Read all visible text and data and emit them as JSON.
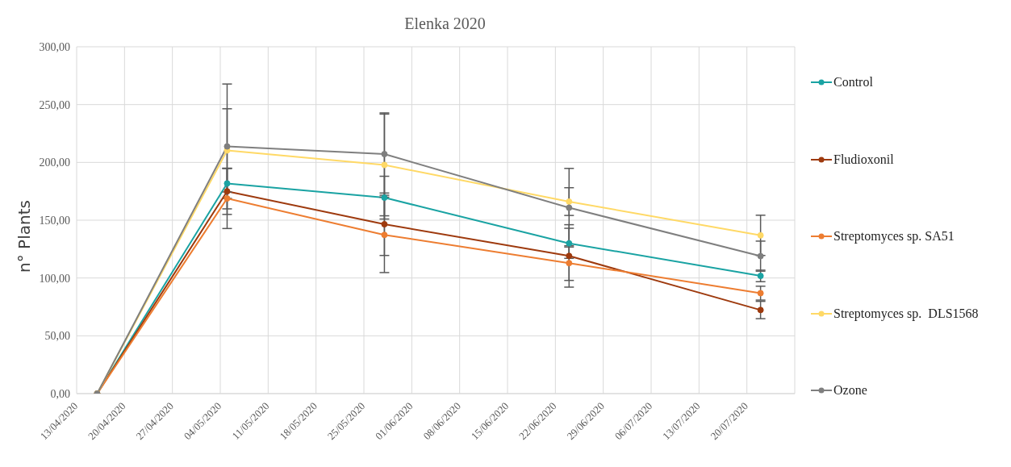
{
  "chart_data": {
    "type": "line",
    "title": "Elenka 2020",
    "ylabel": "n° Plants",
    "x": [
      "2020-04-16",
      "2020-05-05",
      "2020-05-28",
      "2020-06-24",
      "2020-07-22"
    ],
    "series": [
      {
        "name": "Control",
        "color": "#1aa3a3",
        "values": [
          0,
          181.8,
          169.5,
          130,
          101.8
        ],
        "errors": [
          null,
          13,
          18.5,
          13,
          5
        ]
      },
      {
        "name": "Fludioxonil",
        "color": "#9e3a0e",
        "values": [
          0,
          175,
          146.5,
          119.1,
          72.3
        ],
        "errors": [
          null,
          20,
          27,
          27,
          7.5
        ]
      },
      {
        "name": "Streptomyces sp. SA51",
        "color": "#ed7d31",
        "values": [
          0,
          168.8,
          137.3,
          112.9,
          86.9
        ],
        "errors": [
          null,
          26,
          32.6,
          15,
          6
        ]
      },
      {
        "name": "Streptomyces sp.  DLS1568",
        "color": "#ffd966",
        "values": [
          0,
          210.4,
          197.8,
          166.1,
          136.9
        ],
        "errors": [
          null,
          36,
          44,
          12,
          17.4
        ]
      },
      {
        "name": "Ozone",
        "color": "#7f7f7f",
        "values": [
          0,
          213.8,
          207.2,
          160.8,
          118.9
        ],
        "errors": [
          null,
          54,
          35.6,
          34,
          13
        ]
      }
    ],
    "xlim": [
      "2020-04-13",
      "2020-07-27"
    ],
    "xticks": [
      {
        "value": "2020-04-13",
        "label": "13/04/2020"
      },
      {
        "value": "2020-04-20",
        "label": "20/04/2020"
      },
      {
        "value": "2020-04-27",
        "label": "27/04/2020"
      },
      {
        "value": "2020-05-04",
        "label": "04/05/2020"
      },
      {
        "value": "2020-05-11",
        "label": "11/05/2020"
      },
      {
        "value": "2020-05-18",
        "label": "18/05/2020"
      },
      {
        "value": "2020-05-25",
        "label": "25/05/2020"
      },
      {
        "value": "2020-06-01",
        "label": "01/06/2020"
      },
      {
        "value": "2020-06-08",
        "label": "08/06/2020"
      },
      {
        "value": "2020-06-15",
        "label": "15/06/2020"
      },
      {
        "value": "2020-06-22",
        "label": "22/06/2020"
      },
      {
        "value": "2020-06-29",
        "label": "29/06/2020"
      },
      {
        "value": "2020-07-06",
        "label": "06/07/2020"
      },
      {
        "value": "2020-07-13",
        "label": "13/07/2020"
      },
      {
        "value": "2020-07-20",
        "label": "20/07/2020"
      },
      {
        "value": "2020-07-27",
        "label": null
      }
    ],
    "ylim": [
      0,
      300
    ],
    "yticks": [
      {
        "value": 0,
        "label": "0,00"
      },
      {
        "value": 50,
        "label": "50,00"
      },
      {
        "value": 100,
        "label": "100,00"
      },
      {
        "value": 150,
        "label": "150,00"
      },
      {
        "value": 200,
        "label": "200,00"
      },
      {
        "value": 250,
        "label": "250,00"
      },
      {
        "value": 300,
        "label": "300,00"
      }
    ],
    "grid": true,
    "legend": "right",
    "marker": "circle",
    "line_style": "solid"
  }
}
